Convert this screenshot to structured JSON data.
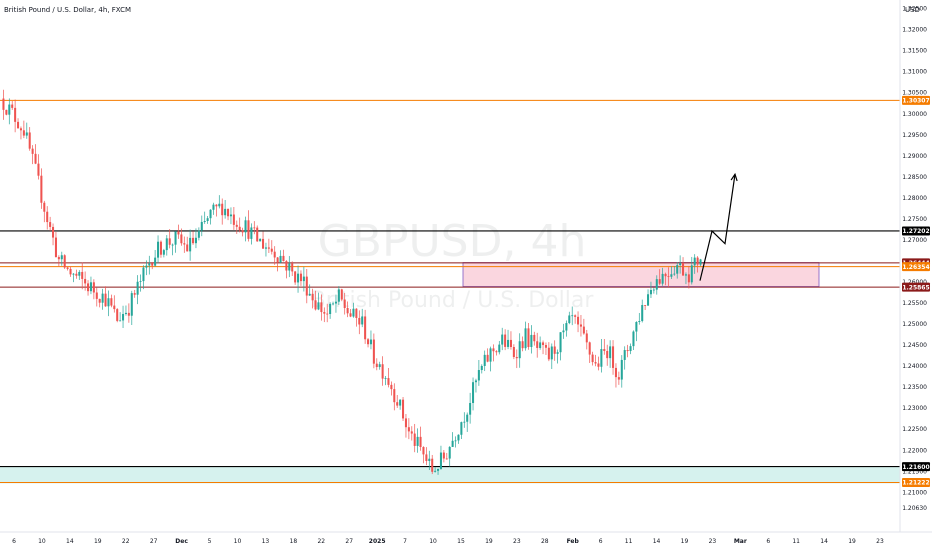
{
  "header": {
    "title": "British Pound / U.S. Dollar, 4h, FXCM",
    "currency": "USD"
  },
  "watermark": {
    "symbol": "GBPUSD, 4h",
    "name": "British Pound / U.S. Dollar"
  },
  "colors": {
    "up": "#26a69a",
    "down": "#ef5350",
    "orange": "#f57c00",
    "black": "#000000",
    "darkred": "#8b1a1a",
    "zone_fill": "#f8c8d4",
    "zone_border": "#7e57c2",
    "teal_zone": "#d6f2ee"
  },
  "chart_data": {
    "type": "candlestick",
    "ylim": [
      1.2033,
      1.3255
    ],
    "y_ticks": [
      "1.32500",
      "1.32000",
      "1.31500",
      "1.31000",
      "1.30500",
      "1.30000",
      "1.29500",
      "1.29000",
      "1.28500",
      "1.28000",
      "1.27500",
      "1.27000",
      "1.26500",
      "1.26000",
      "1.25500",
      "1.25000",
      "1.24500",
      "1.24000",
      "1.23500",
      "1.23000",
      "1.22500",
      "1.22000",
      "1.21500",
      "1.21000",
      "1.20630"
    ],
    "x_labels": [
      "6",
      "10",
      "14",
      "19",
      "22",
      "27",
      "Dec",
      "5",
      "10",
      "13",
      "18",
      "22",
      "27",
      "2025",
      "7",
      "10",
      "15",
      "19",
      "23",
      "28",
      "Feb",
      "6",
      "11",
      "14",
      "19",
      "23",
      "Mar",
      "6",
      "11",
      "14",
      "19",
      "23"
    ],
    "horizontal_levels": [
      {
        "price": 1.30307,
        "label": "1.30307",
        "color": "orange"
      },
      {
        "price": 1.27202,
        "label": "1.27202",
        "color": "black"
      },
      {
        "price": 1.26444,
        "label": "1.26444",
        "color": "darkred"
      },
      {
        "price": 1.26354,
        "label": "1.26354",
        "color": "orange"
      },
      {
        "price": 1.25865,
        "label": "1.25865",
        "color": "darkred"
      },
      {
        "price": 1.216,
        "label": "1.21600",
        "color": "black"
      },
      {
        "price": 1.21222,
        "label": "1.21222",
        "color": "orange"
      }
    ],
    "zones": [
      {
        "name": "supply-demand-zone",
        "y_top": 1.2645,
        "y_bottom": 1.2588
      },
      {
        "name": "support-zone",
        "y_top": 1.216,
        "y_bottom": 1.212
      }
    ],
    "projection_path": [
      1.2602,
      1.272,
      1.269,
      1.2855
    ],
    "close_path": [
      1.3035,
      1.3,
      1.296,
      1.286,
      1.275,
      1.265,
      1.262,
      1.26,
      1.258,
      1.256,
      1.251,
      1.254,
      1.26,
      1.266,
      1.269,
      1.27,
      1.268,
      1.271,
      1.276,
      1.278,
      1.275,
      1.273,
      1.27,
      1.268,
      1.266,
      1.262,
      1.26,
      1.255,
      1.252,
      1.256,
      1.252,
      1.25,
      1.242,
      1.238,
      1.232,
      1.224,
      1.22,
      1.215,
      1.218,
      1.224,
      1.23,
      1.238,
      1.243,
      1.246,
      1.243,
      1.247,
      1.244,
      1.242,
      1.246,
      1.251,
      1.246,
      1.24,
      1.244,
      1.238,
      1.246,
      1.254,
      1.26,
      1.262,
      1.264,
      1.262,
      1.266
    ]
  }
}
